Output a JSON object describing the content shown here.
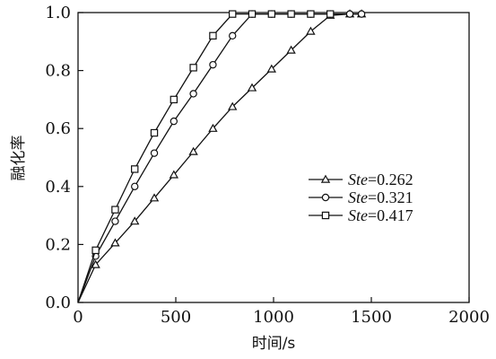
{
  "chart_data": {
    "type": "line",
    "xlabel": "时间/s",
    "ylabel": "融化率",
    "xlim": [
      0,
      2000
    ],
    "ylim": [
      0,
      1.0
    ],
    "x_ticks": [
      "0",
      "500",
      "1000",
      "1500",
      "2000"
    ],
    "y_ticks": [
      "0.0",
      "0.2",
      "0.4",
      "0.6",
      "0.8",
      "1.0"
    ],
    "x_tick_values": [
      0,
      500,
      1000,
      1500,
      2000
    ],
    "y_tick_values": [
      0,
      0.2,
      0.4,
      0.6,
      0.8,
      1.0
    ],
    "grid": false,
    "legend_position": "center-right",
    "series": [
      {
        "name_prefix": "Ste",
        "name_value": "=0.262",
        "marker": "triangle",
        "line_start": [
          0,
          0
        ],
        "points": [
          [
            90,
            0.13
          ],
          [
            190,
            0.205
          ],
          [
            290,
            0.28
          ],
          [
            390,
            0.36
          ],
          [
            490,
            0.44
          ],
          [
            590,
            0.52
          ],
          [
            690,
            0.6
          ],
          [
            790,
            0.675
          ],
          [
            890,
            0.74
          ],
          [
            990,
            0.805
          ],
          [
            1090,
            0.87
          ],
          [
            1190,
            0.935
          ],
          [
            1290,
            0.99
          ],
          [
            1390,
            0.995
          ],
          [
            1450,
            0.995
          ]
        ]
      },
      {
        "name_prefix": "Ste",
        "name_value": "=0.321",
        "marker": "circle",
        "line_start": [
          0,
          0
        ],
        "points": [
          [
            90,
            0.16
          ],
          [
            190,
            0.28
          ],
          [
            290,
            0.4
          ],
          [
            390,
            0.515
          ],
          [
            490,
            0.625
          ],
          [
            590,
            0.72
          ],
          [
            690,
            0.82
          ],
          [
            790,
            0.92
          ],
          [
            890,
            0.995
          ],
          [
            990,
            0.995
          ],
          [
            1090,
            0.995
          ],
          [
            1190,
            0.995
          ],
          [
            1290,
            0.995
          ],
          [
            1390,
            0.995
          ],
          [
            1450,
            0.995
          ]
        ]
      },
      {
        "name_prefix": "Ste",
        "name_value": "=0.417",
        "marker": "square",
        "line_start": [
          0,
          0
        ],
        "points": [
          [
            90,
            0.18
          ],
          [
            190,
            0.32
          ],
          [
            290,
            0.46
          ],
          [
            390,
            0.585
          ],
          [
            490,
            0.7
          ],
          [
            590,
            0.81
          ],
          [
            690,
            0.92
          ],
          [
            790,
            0.995
          ],
          [
            890,
            0.995
          ],
          [
            990,
            0.995
          ],
          [
            1090,
            0.995
          ],
          [
            1190,
            0.995
          ],
          [
            1290,
            0.995
          ]
        ]
      }
    ]
  }
}
